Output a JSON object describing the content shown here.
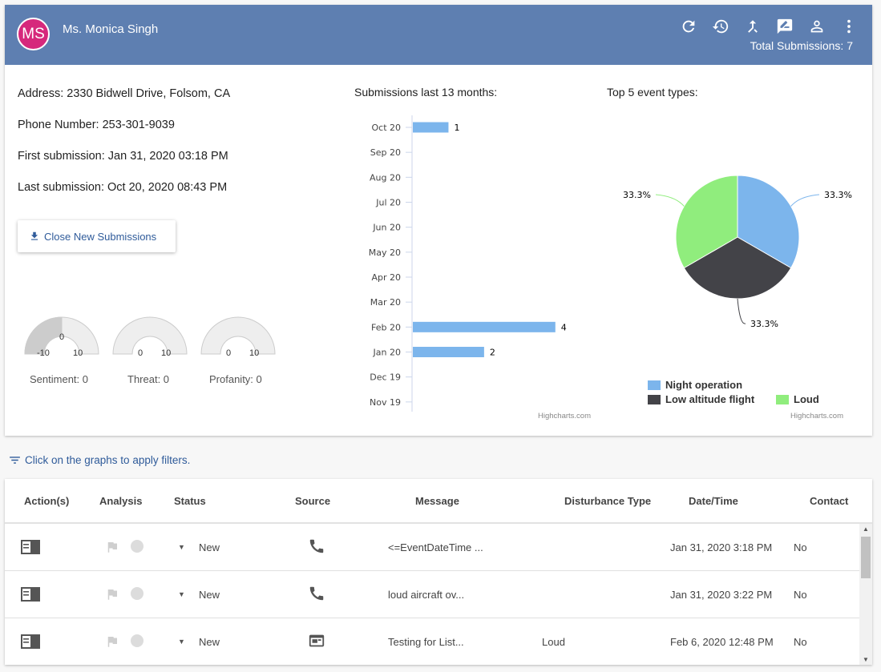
{
  "header": {
    "avatar_initials": "MS",
    "user_name": "Ms. Monica Singh",
    "total_submissions": "Total Submissions: 7",
    "icons": [
      "refresh-icon",
      "history-icon",
      "merge-icon",
      "feedback-icon",
      "person-icon",
      "more-vert-icon"
    ]
  },
  "details": {
    "address": "Address: 2330 Bidwell Drive, Folsom, CA",
    "phone": "Phone Number: 253-301-9039",
    "first_submission": "First submission: Jan 31, 2020 03:18 PM",
    "last_submission": "Last submission: Oct 20, 2020 08:43 PM"
  },
  "close_button": {
    "label": "Close New Submissions",
    "icon": "download-icon"
  },
  "gauges": [
    {
      "name": "sentiment",
      "value": "0",
      "min": "-10",
      "max": "10",
      "label": "Sentiment: 0",
      "fill_fraction": 0.5
    },
    {
      "name": "threat",
      "value": "",
      "min": "0",
      "max": "10",
      "label": "Threat: 0",
      "fill_fraction": 0
    },
    {
      "name": "profanity",
      "value": "",
      "min": "0",
      "max": "10",
      "label": "Profanity: 0",
      "fill_fraction": 0
    }
  ],
  "chart_data": [
    {
      "type": "bar",
      "title": "Submissions last 13 months:",
      "categories": [
        "Oct 20",
        "Sep 20",
        "Aug 20",
        "Jul 20",
        "Jun 20",
        "May 20",
        "Apr 20",
        "Mar 20",
        "Feb 20",
        "Jan 20",
        "Dec 19",
        "Nov 19"
      ],
      "values": [
        1,
        0,
        0,
        0,
        0,
        0,
        0,
        0,
        4,
        2,
        0,
        0
      ],
      "data_labels": [
        "1",
        "",
        "",
        "",
        "",
        "",
        "",
        "",
        "4",
        "2",
        "",
        ""
      ],
      "xlim": [
        0,
        4.5
      ],
      "credit": "Highcharts.com",
      "color": "#7cb5ec"
    },
    {
      "type": "pie",
      "title": "Top 5 event types:",
      "slices": [
        {
          "name": "Night operation",
          "value": 33.3,
          "label": "33.3%",
          "color": "#7cb5ec"
        },
        {
          "name": "Low altitude flight",
          "value": 33.3,
          "label": "33.3%",
          "color": "#434348"
        },
        {
          "name": "Loud",
          "value": 33.3,
          "label": "33.3%",
          "color": "#90ed7d"
        }
      ],
      "legend_placement": "bottom",
      "credit": "Highcharts.com"
    }
  ],
  "filter_hint": "Click on the graphs to apply filters.",
  "table": {
    "columns": [
      "Action(s)",
      "Analysis",
      "Status",
      "Source",
      "Message",
      "Disturbance Type",
      "Date/Time",
      "Contact"
    ],
    "rows": [
      {
        "status": "New",
        "source_icon": "phone-icon",
        "message": "<=EventDateTime ...",
        "disturbance": "",
        "datetime": "Jan 31, 2020 3:18 PM",
        "contact": "No"
      },
      {
        "status": "New",
        "source_icon": "phone-icon",
        "message": "loud aircraft ov...",
        "disturbance": "",
        "datetime": "Jan 31, 2020 3:22 PM",
        "contact": "No"
      },
      {
        "status": "New",
        "source_icon": "web-form-icon",
        "message": "Testing for List...",
        "disturbance": "Loud",
        "datetime": "Feb 6, 2020 12:48 PM",
        "contact": "No"
      }
    ]
  }
}
